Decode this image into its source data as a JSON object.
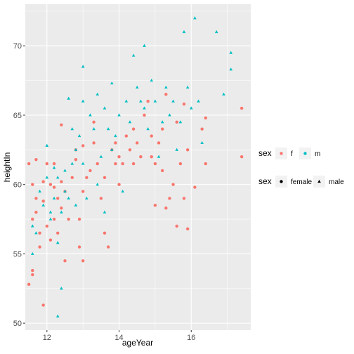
{
  "chart_data": {
    "type": "scatter",
    "xlabel": "ageYear",
    "ylabel": "heightIn",
    "xlim": [
      11.4,
      17.65
    ],
    "ylim": [
      49.5,
      73.0
    ],
    "xticks": [
      12,
      14,
      16
    ],
    "yticks": [
      50,
      55,
      60,
      65,
      70
    ],
    "grid": true,
    "background": "#EBEBEB",
    "legend_position": "right",
    "legends": [
      {
        "title": "sex",
        "kind": "color",
        "entries": [
          {
            "label": "f",
            "color": "#F8766D",
            "shape": "circle"
          },
          {
            "label": "m",
            "color": "#00BFC4",
            "shape": "circle"
          }
        ]
      },
      {
        "title": "sex",
        "kind": "shape",
        "entries": [
          {
            "label": "female",
            "color": "#000000",
            "shape": "circle"
          },
          {
            "label": "male",
            "color": "#000000",
            "shape": "triangle"
          }
        ]
      }
    ],
    "series": [
      {
        "name": "f",
        "color": "#F8766D",
        "shape": "circle",
        "points": [
          [
            11.5,
            52.8
          ],
          [
            11.6,
            53.5
          ],
          [
            11.6,
            53.8
          ],
          [
            11.5,
            61.5
          ],
          [
            11.6,
            60.0
          ],
          [
            11.6,
            57.5
          ],
          [
            11.7,
            59.0
          ],
          [
            11.7,
            61.8
          ],
          [
            11.7,
            58.0
          ],
          [
            11.8,
            56.5
          ],
          [
            11.8,
            55.5
          ],
          [
            11.9,
            51.3
          ],
          [
            11.9,
            58.8
          ],
          [
            11.9,
            60.2
          ],
          [
            12.0,
            61.5
          ],
          [
            12.0,
            57.0
          ],
          [
            12.1,
            56.0
          ],
          [
            12.1,
            60.0
          ],
          [
            12.2,
            59.8
          ],
          [
            12.2,
            57.5
          ],
          [
            12.2,
            61.5
          ],
          [
            12.3,
            59.0
          ],
          [
            12.3,
            56.5
          ],
          [
            12.4,
            60.2
          ],
          [
            12.4,
            58.3
          ],
          [
            12.4,
            64.3
          ],
          [
            12.5,
            54.5
          ],
          [
            12.5,
            59.5
          ],
          [
            12.6,
            57.5
          ],
          [
            12.7,
            60.5
          ],
          [
            12.8,
            62.5
          ],
          [
            12.8,
            61.8
          ],
          [
            12.9,
            55.5
          ],
          [
            12.9,
            57.5
          ],
          [
            13.0,
            54.5
          ],
          [
            13.0,
            59.5
          ],
          [
            13.0,
            62.8
          ],
          [
            13.1,
            60.5
          ],
          [
            13.2,
            61.0
          ],
          [
            13.3,
            63.0
          ],
          [
            13.3,
            64.5
          ],
          [
            13.4,
            61.5
          ],
          [
            13.5,
            59.0
          ],
          [
            13.6,
            56.5
          ],
          [
            13.6,
            60.5
          ],
          [
            13.7,
            55.5
          ],
          [
            13.8,
            62.5
          ],
          [
            13.9,
            63.0
          ],
          [
            13.9,
            61.5
          ],
          [
            14.0,
            60.0
          ],
          [
            14.0,
            62.0
          ],
          [
            14.1,
            61.5
          ],
          [
            14.2,
            63.5
          ],
          [
            14.3,
            62.5
          ],
          [
            14.4,
            64.0
          ],
          [
            14.4,
            61.5
          ],
          [
            14.5,
            63.0
          ],
          [
            14.6,
            62.0
          ],
          [
            14.7,
            65.0
          ],
          [
            14.8,
            66.0
          ],
          [
            14.9,
            62.0
          ],
          [
            14.9,
            63.5
          ],
          [
            15.0,
            58.5
          ],
          [
            15.0,
            61.5
          ],
          [
            15.1,
            63.0
          ],
          [
            15.2,
            64.0
          ],
          [
            15.2,
            61.0
          ],
          [
            15.3,
            66.5
          ],
          [
            15.3,
            58.3
          ],
          [
            15.4,
            59.0
          ],
          [
            15.5,
            60.0
          ],
          [
            15.6,
            57.0
          ],
          [
            15.6,
            64.5
          ],
          [
            15.7,
            61.5
          ],
          [
            15.8,
            65.8
          ],
          [
            15.8,
            59.0
          ],
          [
            15.9,
            56.8
          ],
          [
            15.9,
            62.5
          ],
          [
            16.1,
            59.8
          ],
          [
            16.3,
            64.0
          ],
          [
            16.4,
            61.5
          ],
          [
            16.4,
            64.8
          ],
          [
            17.4,
            65.5
          ],
          [
            17.4,
            62.0
          ]
        ]
      },
      {
        "name": "m",
        "color": "#00BFC4",
        "shape": "triangle",
        "points": [
          [
            11.6,
            55.0
          ],
          [
            11.6,
            57.0
          ],
          [
            11.7,
            56.5
          ],
          [
            11.8,
            59.5
          ],
          [
            11.9,
            58.5
          ],
          [
            12.0,
            62.8
          ],
          [
            12.0,
            60.5
          ],
          [
            12.1,
            58.0
          ],
          [
            12.1,
            57.5
          ],
          [
            12.2,
            59.0
          ],
          [
            12.2,
            61.2
          ],
          [
            12.3,
            50.5
          ],
          [
            12.3,
            55.8
          ],
          [
            12.3,
            60.5
          ],
          [
            12.4,
            52.5
          ],
          [
            12.4,
            58.0
          ],
          [
            12.5,
            59.5
          ],
          [
            12.5,
            61.0
          ],
          [
            12.6,
            66.2
          ],
          [
            12.6,
            59.0
          ],
          [
            12.7,
            61.5
          ],
          [
            12.7,
            64.0
          ],
          [
            12.8,
            62.5
          ],
          [
            12.8,
            58.5
          ],
          [
            12.9,
            63.5
          ],
          [
            13.0,
            68.5
          ],
          [
            13.0,
            66.0
          ],
          [
            13.0,
            61.5
          ],
          [
            13.1,
            59.0
          ],
          [
            13.2,
            65.0
          ],
          [
            13.3,
            64.0
          ],
          [
            13.4,
            60.0
          ],
          [
            13.4,
            66.5
          ],
          [
            13.5,
            62.0
          ],
          [
            13.6,
            65.5
          ],
          [
            13.6,
            58.0
          ],
          [
            13.7,
            64.0
          ],
          [
            13.8,
            67.3
          ],
          [
            13.8,
            62.5
          ],
          [
            13.9,
            63.5
          ],
          [
            14.0,
            65.0
          ],
          [
            14.1,
            59.5
          ],
          [
            14.2,
            66.0
          ],
          [
            14.3,
            64.5
          ],
          [
            14.4,
            69.3
          ],
          [
            14.5,
            67.0
          ],
          [
            14.6,
            66.0
          ],
          [
            14.7,
            70.0
          ],
          [
            14.7,
            65.5
          ],
          [
            14.8,
            64.0
          ],
          [
            14.9,
            67.5
          ],
          [
            15.0,
            66.0
          ],
          [
            15.1,
            62.0
          ],
          [
            15.2,
            64.5
          ],
          [
            15.3,
            67.0
          ],
          [
            15.4,
            65.0
          ],
          [
            15.5,
            66.0
          ],
          [
            15.6,
            62.5
          ],
          [
            15.7,
            64.5
          ],
          [
            15.8,
            71.0
          ],
          [
            15.9,
            67.0
          ],
          [
            16.0,
            65.5
          ],
          [
            16.1,
            72.0
          ],
          [
            16.2,
            66.0
          ],
          [
            16.3,
            63.0
          ],
          [
            16.7,
            71.0
          ],
          [
            16.9,
            66.5
          ],
          [
            17.1,
            69.5
          ],
          [
            17.1,
            68.3
          ]
        ]
      }
    ]
  }
}
